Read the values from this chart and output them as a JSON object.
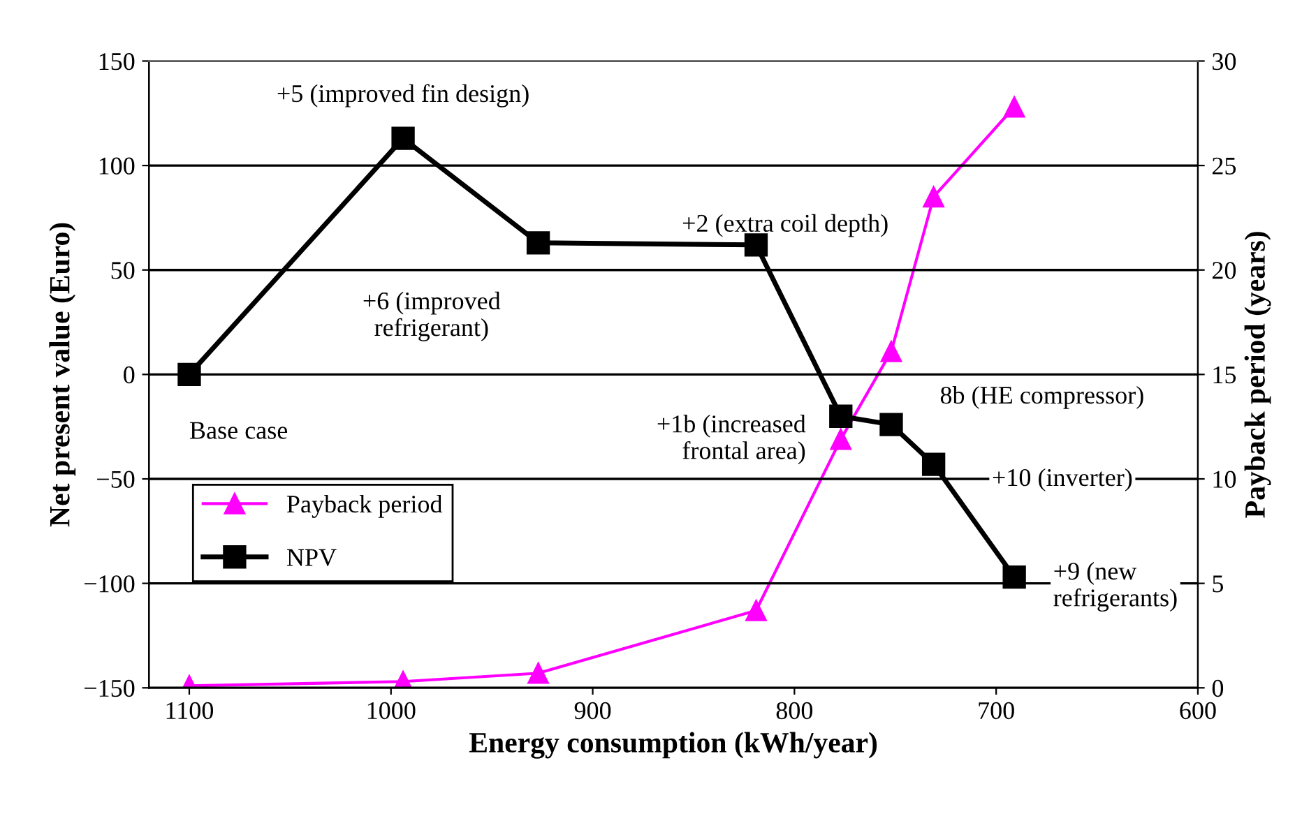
{
  "chart_data": {
    "type": "line",
    "xlabel": "Energy consumption (kWh/year)",
    "ylabel": "Net present value (Euro)",
    "y2label": "Payback period (years)",
    "x": [
      1100,
      994,
      927,
      819,
      777,
      752,
      731,
      691
    ],
    "series": [
      {
        "name": "Payback period",
        "color": "#ff00ff",
        "axis": "y2",
        "marker": "triangle",
        "values": [
          0.1,
          0.3,
          0.7,
          3.7,
          11.9,
          16.1,
          23.5,
          27.8
        ]
      },
      {
        "name": "NPV",
        "color": "#000000",
        "axis": "y",
        "marker": "square",
        "values": [
          0,
          113,
          63,
          62,
          -20,
          -24,
          -43,
          -97
        ]
      }
    ],
    "xlim": [
      1120,
      600
    ],
    "xticks": [
      1100,
      1000,
      900,
      800,
      700,
      600
    ],
    "ylim": [
      -150,
      150
    ],
    "yticks": [
      {
        "value": -150,
        "label": "−150"
      },
      {
        "value": -100,
        "label": "−100"
      },
      {
        "value": -50,
        "label": "−50"
      },
      0,
      50,
      100,
      150
    ],
    "y2lim": [
      0,
      30
    ],
    "y2ticks": [
      0,
      5,
      10,
      15,
      20,
      25,
      30
    ],
    "grid": "y",
    "legend": "left",
    "line_style": "solid",
    "annotations": [
      {
        "text": "Base case",
        "x": 1100,
        "y": 0
      },
      {
        "text": "+5 (improved fin design)",
        "x": 994,
        "y": 113
      },
      {
        "text": "+6 (improved\nrefrigerant)",
        "x": 927,
        "y": 63
      },
      {
        "text": "+2 (extra coil depth)",
        "x": 819,
        "y": 62
      },
      {
        "text": "+1b (increased\nfrontal area)",
        "x": 777,
        "y": -20
      },
      {
        "text": "8b (HE compressor)",
        "x": 752,
        "y": -24
      },
      {
        "text": "+10 (inverter)",
        "x": 731,
        "y": -43
      },
      {
        "text": "+9 (new\nrefrigerants)",
        "x": 691,
        "y": -97
      }
    ]
  }
}
